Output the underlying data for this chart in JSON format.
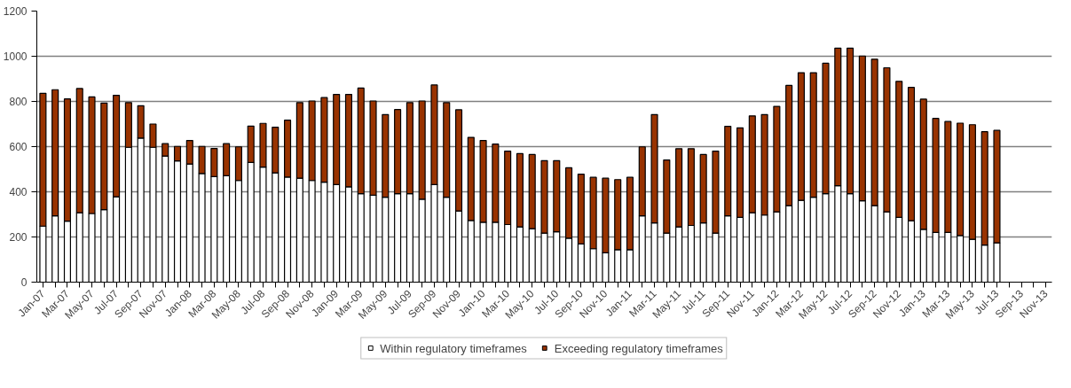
{
  "chart_data": {
    "type": "bar",
    "stacked": true,
    "categories": [
      "Jan-07",
      null,
      "Mar-07",
      null,
      "May-07",
      null,
      "Jul-07",
      null,
      "Sep-07",
      null,
      "Nov-07",
      null,
      "Jan-08",
      null,
      "Mar-08",
      null,
      "May-08",
      null,
      "Jul-08",
      null,
      "Sep-08",
      null,
      "Nov-08",
      null,
      "Jan-09",
      null,
      "Mar-09",
      null,
      "May-09",
      null,
      "Jul-09",
      null,
      "Sep-09",
      null,
      "Nov-09",
      null,
      "Jan-10",
      null,
      "Mar-10",
      null,
      "May-10",
      null,
      "Jul-10",
      null,
      "Sep-10",
      null,
      "Nov-10",
      null,
      "Jan-11",
      null,
      "Mar-11",
      null,
      "May-11",
      null,
      "Jul-11",
      null,
      "Sep-11",
      null,
      "Nov-11",
      null,
      "Jan-12",
      null,
      "Mar-12",
      null,
      "May-12",
      null,
      "Jul-12",
      null,
      "Sep-12",
      null,
      "Nov-12",
      null,
      "Jan-13",
      null,
      "Mar-13",
      null,
      "May-13",
      null,
      "Jul-13",
      null,
      "Sep-13",
      null,
      "Nov-13"
    ],
    "series": [
      {
        "name": "Within regulatory timeframes",
        "color": "#ffffff",
        "values": [
          248,
          294,
          270,
          307,
          304,
          321,
          378,
          597,
          638,
          597,
          558,
          537,
          523,
          481,
          467,
          471,
          450,
          530,
          509,
          484,
          465,
          460,
          450,
          443,
          432,
          422,
          392,
          385,
          376,
          392,
          392,
          367,
          432,
          376,
          315,
          273,
          265,
          265,
          255,
          245,
          237,
          217,
          223,
          195,
          169,
          148,
          130,
          144,
          144,
          294,
          262,
          217,
          245,
          251,
          262,
          217,
          294,
          287,
          307,
          297,
          311,
          339,
          362,
          376,
          392,
          427,
          392,
          360,
          339,
          311,
          287,
          272,
          234,
          220,
          220,
          206,
          190,
          164,
          174,
          null,
          null,
          null,
          null
        ]
      },
      {
        "name": "Exceeding regulatory timeframes",
        "color": "#993300",
        "values": [
          588,
          558,
          541,
          550,
          516,
          472,
          449,
          198,
          143,
          103,
          55,
          64,
          104,
          120,
          125,
          142,
          149,
          161,
          194,
          202,
          252,
          335,
          352,
          374,
          399,
          409,
          467,
          417,
          366,
          372,
          403,
          435,
          441,
          419,
          448,
          368,
          362,
          346,
          325,
          324,
          328,
          321,
          315,
          311,
          309,
          316,
          330,
          310,
          320,
          305,
          480,
          324,
          346,
          340,
          303,
          363,
          396,
          396,
          429,
          445,
          467,
          532,
          565,
          551,
          577,
          609,
          644,
          641,
          648,
          638,
          602,
          590,
          576,
          505,
          491,
          498,
          507,
          502,
          498,
          null,
          null,
          null,
          null
        ]
      }
    ],
    "ylim": [
      0,
      1200
    ],
    "yticks": [
      0,
      200,
      400,
      600,
      800,
      1000,
      1200
    ],
    "grid": "y",
    "legend": "bottom"
  }
}
